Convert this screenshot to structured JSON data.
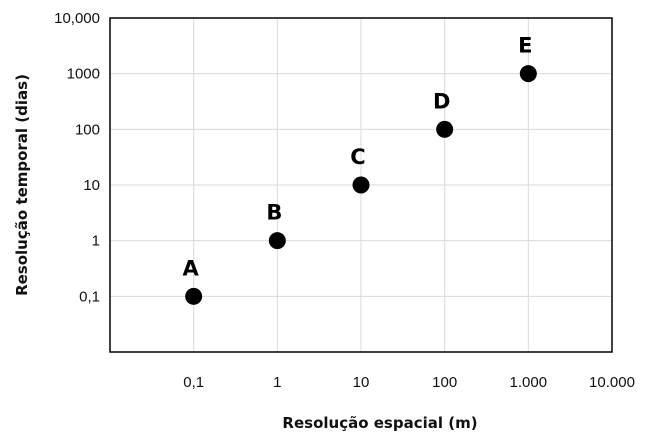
{
  "chart_data": {
    "type": "scatter",
    "xlabel": "Resolução espacial (m)",
    "ylabel": "Resolução temporal (dias)",
    "x_scale": "log",
    "y_scale": "log",
    "xlim": [
      0.01,
      10000
    ],
    "ylim": [
      0.01,
      10000
    ],
    "x_ticks": [
      {
        "value": 0.1,
        "label": "0,1"
      },
      {
        "value": 1,
        "label": "1"
      },
      {
        "value": 10,
        "label": "10"
      },
      {
        "value": 100,
        "label": "100"
      },
      {
        "value": 1000,
        "label": "1.000"
      },
      {
        "value": 10000,
        "label": "10.000"
      }
    ],
    "y_ticks": [
      {
        "value": 0.1,
        "label": "0,1"
      },
      {
        "value": 1,
        "label": "1"
      },
      {
        "value": 10,
        "label": "10"
      },
      {
        "value": 100,
        "label": "100"
      },
      {
        "value": 1000,
        "label": "1000"
      },
      {
        "value": 10000,
        "label": "10,000"
      }
    ],
    "grid": true,
    "points": [
      {
        "label": "A",
        "x": 0.1,
        "y": 0.1
      },
      {
        "label": "B",
        "x": 1,
        "y": 1
      },
      {
        "label": "C",
        "x": 10,
        "y": 10
      },
      {
        "label": "D",
        "x": 100,
        "y": 100
      },
      {
        "label": "E",
        "x": 1000,
        "y": 1000
      }
    ],
    "colors": {
      "point": "#000000",
      "grid": "#d9d9d9",
      "frame": "#000000"
    }
  }
}
